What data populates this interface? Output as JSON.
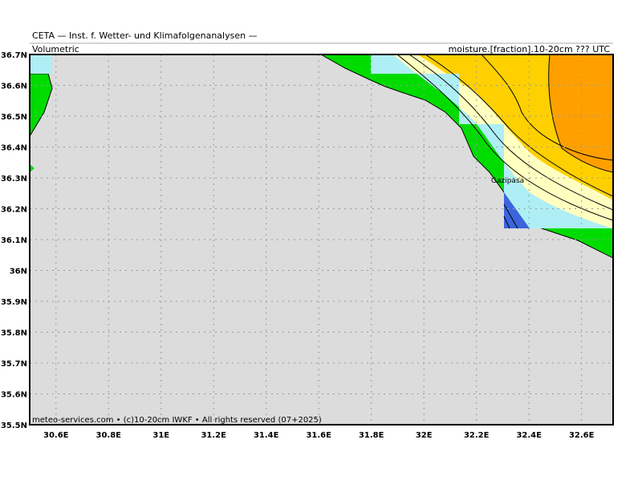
{
  "header": {
    "title": "CETA — Inst. f. Wetter- und Klimafolgenanalysen —",
    "left_label": "Volumetric",
    "right_label": "moisture.[fraction].10-20cm  ??? UTC"
  },
  "map": {
    "lat_labels": [
      "36.7N",
      "36.6N",
      "36.5N",
      "36.4N",
      "36.3N",
      "36.2N",
      "36.1N",
      "36N",
      "35.9N",
      "35.8N",
      "35.7N",
      "35.6N",
      "35.5N"
    ],
    "lon_labels": [
      "30.6E",
      "30.8E",
      "31E",
      "31.2E",
      "31.4E",
      "31.6E",
      "31.8E",
      "32E",
      "32.2E",
      "32.4E",
      "32.6E"
    ],
    "place": "Gazipasa"
  },
  "footer": "meteo-services.com • (c)10-20cm IWKF • All rights reserved (07+2025)"
}
